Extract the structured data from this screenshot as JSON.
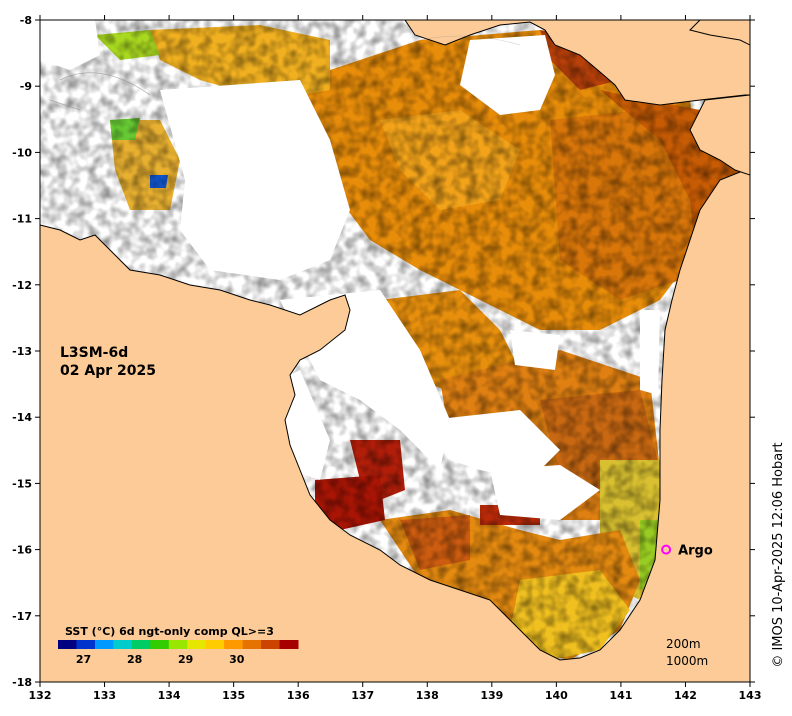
{
  "product": "L3SM-6d",
  "date": "02 Apr 2025",
  "lon_ticks": [
    "132",
    "133",
    "134",
    "135",
    "136",
    "137",
    "138",
    "139",
    "140",
    "141",
    "142",
    "143"
  ],
  "lat_ticks": [
    "-8",
    "-9",
    "-10",
    "-11",
    "-12",
    "-13",
    "-14",
    "-15",
    "-16",
    "-17",
    "-18"
  ],
  "lon_range": [
    132,
    143
  ],
  "lat_range": [
    -18,
    -8
  ],
  "legend": {
    "title": "SST (°C) 6d ngt-only comp QL>=3",
    "ticks": [
      "27",
      "28",
      "29",
      "30"
    ],
    "tick_values": [
      27,
      28,
      29,
      30
    ],
    "range": [
      26.5,
      31.2
    ],
    "colors": [
      "#000080",
      "#0033cc",
      "#0099ff",
      "#00cccc",
      "#00cc66",
      "#33cc00",
      "#99e600",
      "#e6e600",
      "#ffcc00",
      "#ff9900",
      "#e67300",
      "#cc4400",
      "#a60000"
    ]
  },
  "argo": {
    "label": "Argo",
    "lon": 141.7,
    "lat": -16.0,
    "color": "#ff00ff"
  },
  "contours": [
    "200m",
    "1000m"
  ],
  "credit": "© IMOS 10-Apr-2025 12:06 Hobart",
  "land_color": "#fccb97"
}
